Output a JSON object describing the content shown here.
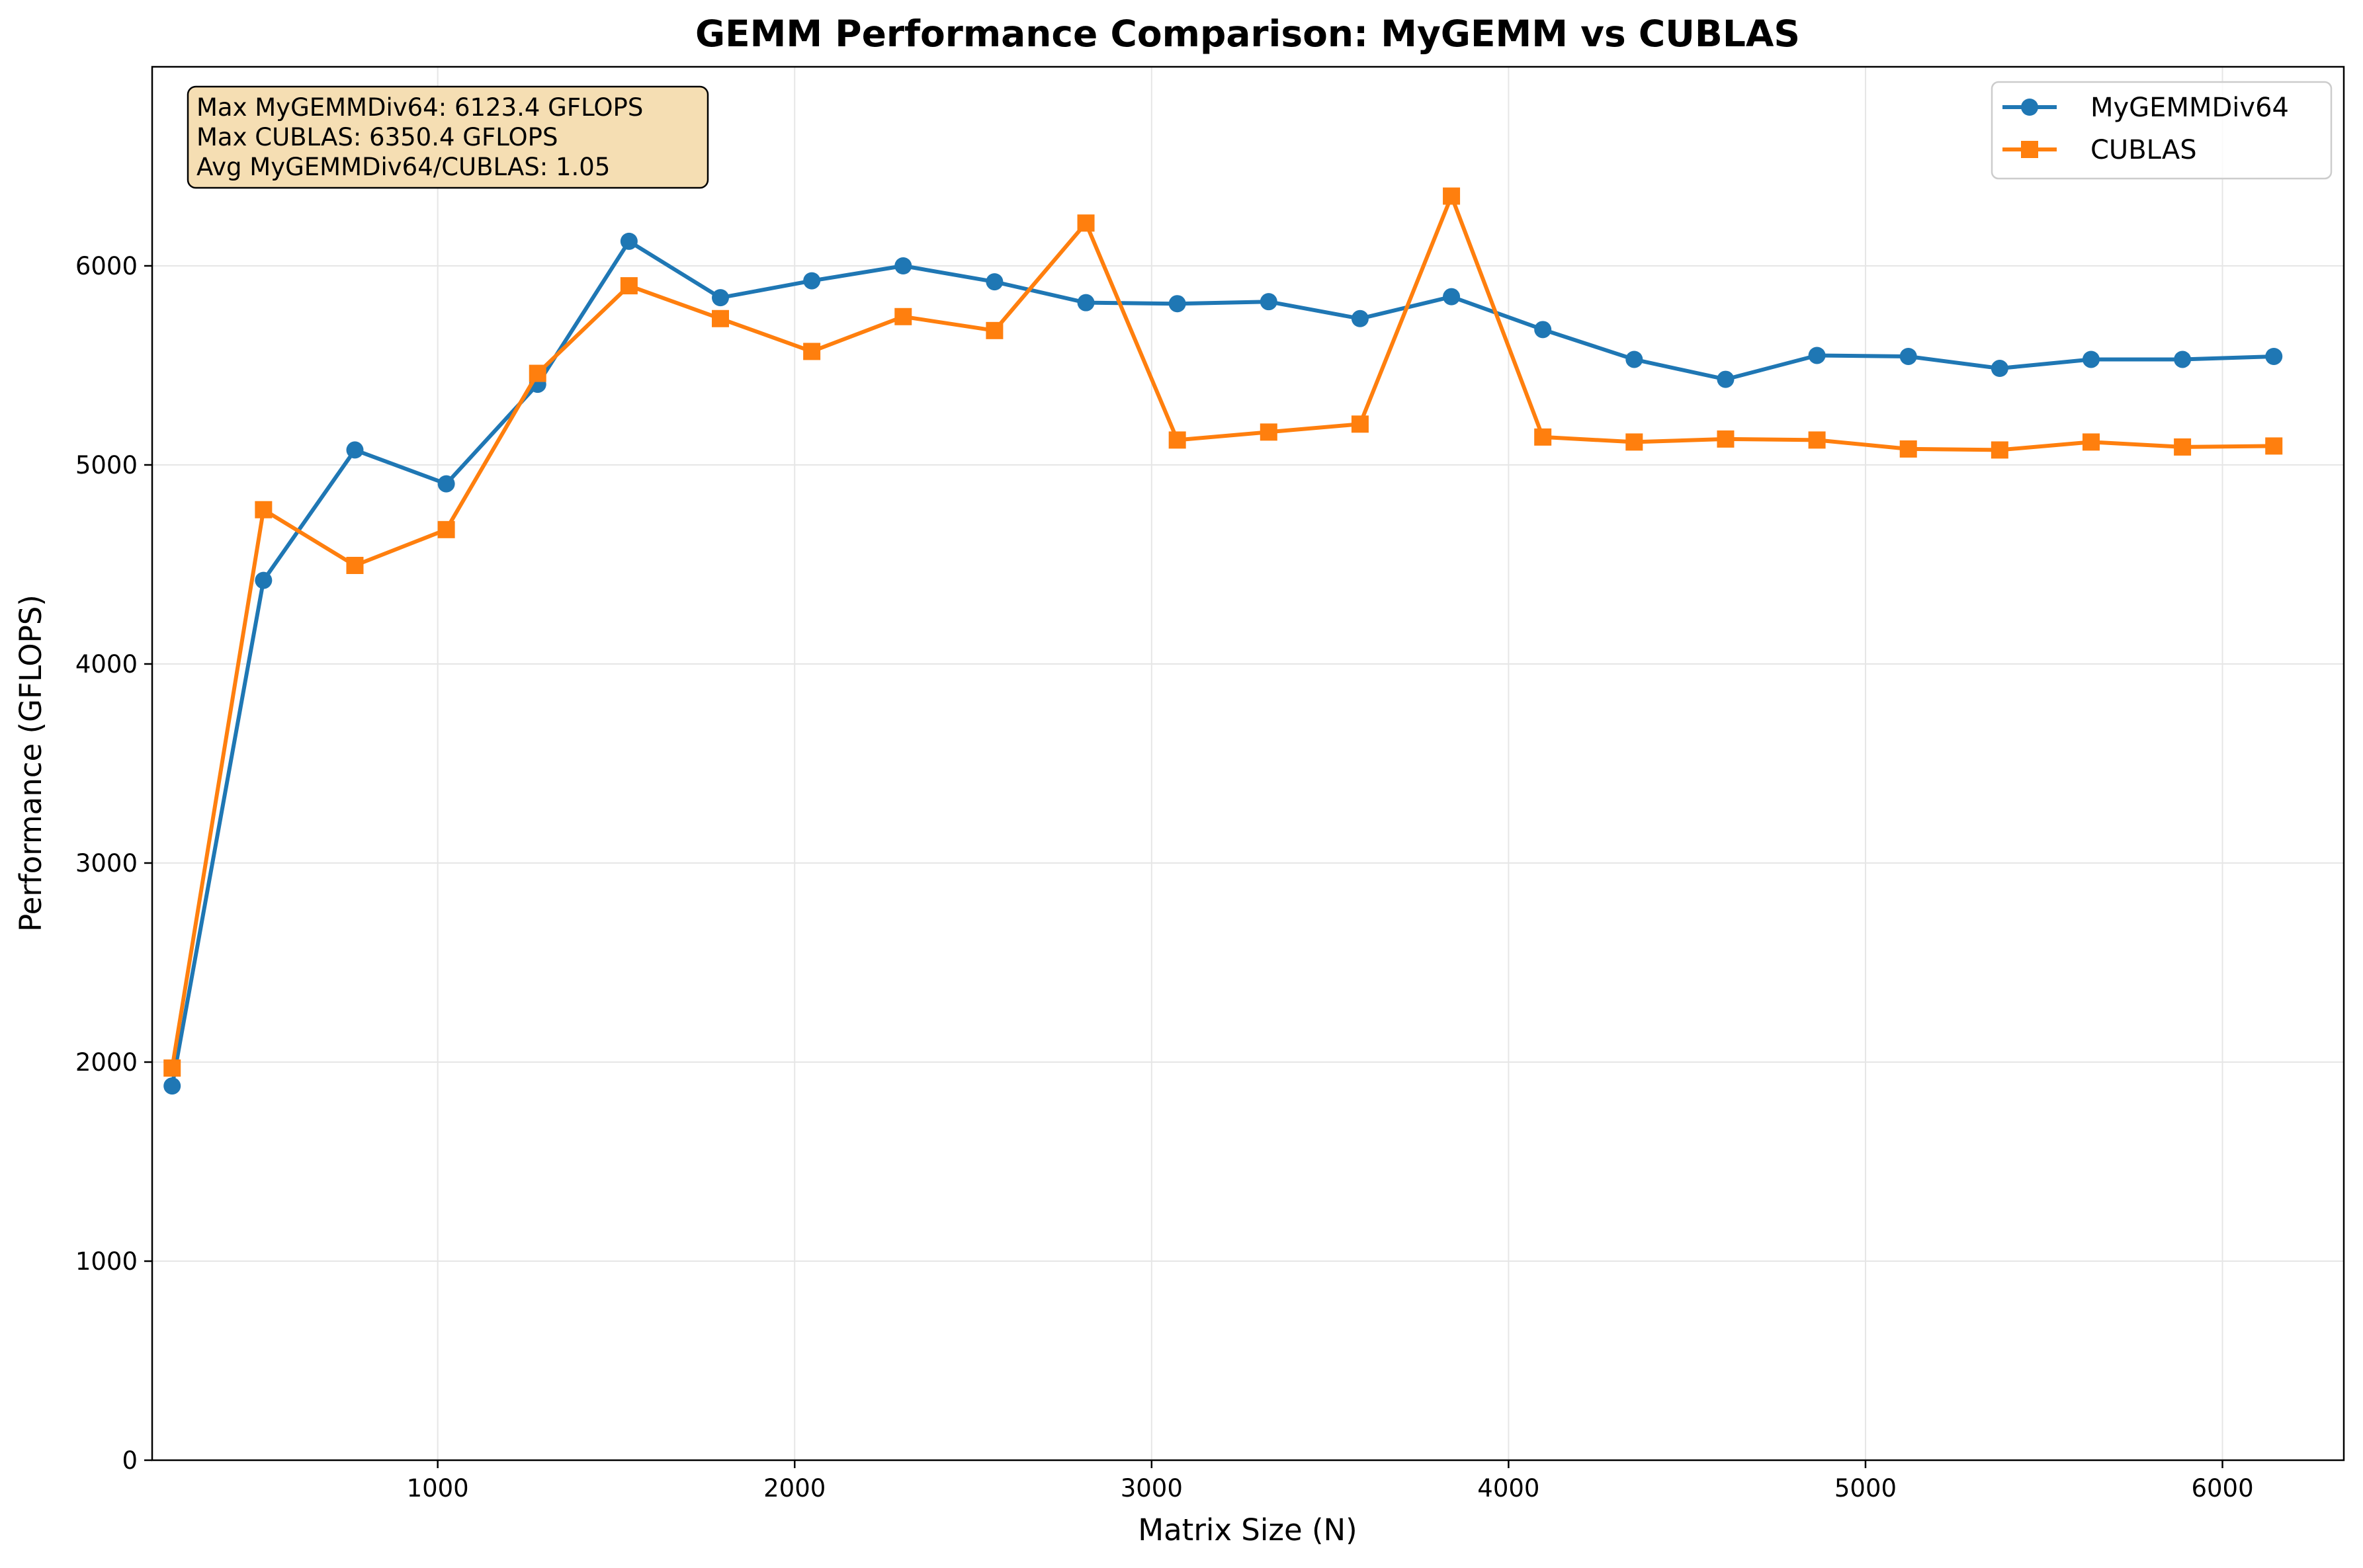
{
  "chart_data": {
    "type": "line",
    "title": "GEMM Performance Comparison: MyGEMM vs CUBLAS",
    "xlabel": "Matrix Size (N)",
    "ylabel": "Performance (GFLOPS)",
    "xlim": [
      200,
      6340
    ],
    "ylim": [
      0,
      7000
    ],
    "xticks": [
      "1000",
      "2000",
      "3000",
      "4000",
      "5000",
      "6000"
    ],
    "yticks": [
      "0",
      "1000",
      "2000",
      "3000",
      "4000",
      "5000",
      "6000"
    ],
    "grid": true,
    "legend_position": "top-right",
    "x": [
      256,
      512,
      768,
      1024,
      1280,
      1536,
      1792,
      2048,
      2304,
      2560,
      2816,
      3072,
      3328,
      3584,
      3840,
      4096,
      4352,
      4608,
      4864,
      5120,
      5376,
      5632,
      5888,
      6144
    ],
    "series": [
      {
        "name": "MyGEMMDiv64",
        "color": "#1f77b4",
        "marker": "circle",
        "values": [
          1880,
          4420,
          5075,
          4905,
          5405,
          6123.4,
          5840,
          5925,
          6000,
          5920,
          5815,
          5810,
          5820,
          5735,
          5845,
          5680,
          5530,
          5430,
          5550,
          5545,
          5485,
          5530,
          5530,
          5545
        ]
      },
      {
        "name": "CUBLAS",
        "color": "#ff7f0e",
        "marker": "square",
        "values": [
          1970,
          4775,
          4495,
          4675,
          5460,
          5900,
          5735,
          5570,
          5745,
          5675,
          6215,
          5125,
          5165,
          5205,
          6350.4,
          5140,
          5115,
          5130,
          5125,
          5080,
          5075,
          5115,
          5090,
          5095
        ]
      }
    ],
    "annotation": {
      "lines": [
        "Max MyGEMMDiv64: 6123.4 GFLOPS",
        "Max CUBLAS: 6350.4 GFLOPS",
        "Avg MyGEMMDiv64/CUBLAS: 1.05"
      ],
      "background": "#f5deb3"
    }
  }
}
